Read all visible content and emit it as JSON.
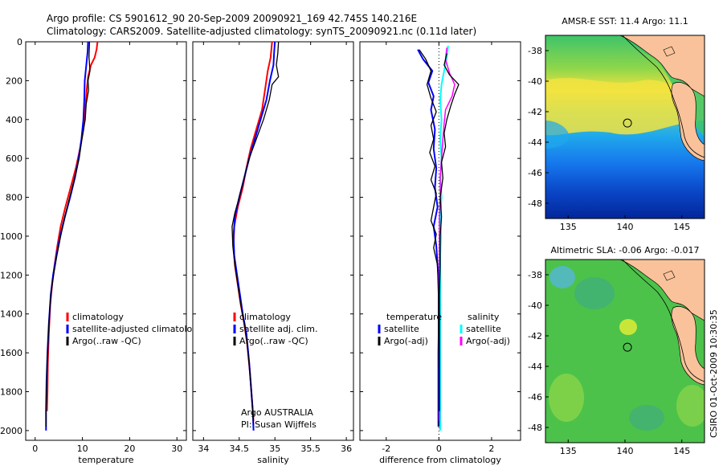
{
  "header": {
    "line1": "Argo profile: CS 5901612_90 20-Sep-2009 20090921_169 42.745S 140.216E",
    "line2": "Climatology: CARS2009. Satellite-adjusted climatology: synTS_20090921.nc (0.11d later)"
  },
  "side_label": "CSIRO 01-Oct-2009 10:30:35",
  "colors": {
    "climatology": "#ff0000",
    "satellite": "#0000ff",
    "argo": "#000000",
    "sat_diff_sal": "#00ffff",
    "argo_diff_sal": "#ff00ff",
    "land": "#f9c29a"
  },
  "chart_data": [
    {
      "id": "temperature",
      "type": "line",
      "xlabel": "temperature",
      "xlim": [
        -2,
        32
      ],
      "ylim": [
        2050,
        0
      ],
      "xticks": [
        0,
        10,
        20,
        30
      ],
      "yticks": [
        0,
        200,
        400,
        600,
        800,
        1000,
        1200,
        1400,
        1600,
        1800,
        2000
      ],
      "legend": [
        "climatology",
        "satellite-adjusted climatology",
        "Argo(..raw -QC)"
      ],
      "series": [
        {
          "name": "climatology",
          "color": "#ff0000",
          "width": 2,
          "points": [
            [
              13.2,
              0
            ],
            [
              13,
              40
            ],
            [
              12.6,
              80
            ],
            [
              11.8,
              120
            ],
            [
              11.2,
              180
            ],
            [
              10.9,
              250
            ],
            [
              10.6,
              350
            ],
            [
              10.2,
              450
            ],
            [
              9.5,
              550
            ],
            [
              8.6,
              650
            ],
            [
              7.5,
              750
            ],
            [
              6.4,
              850
            ],
            [
              5.4,
              950
            ],
            [
              4.7,
              1050
            ],
            [
              4.1,
              1150
            ],
            [
              3.6,
              1250
            ],
            [
              3.2,
              1350
            ],
            [
              2.9,
              1500
            ],
            [
              2.7,
              1650
            ],
            [
              2.6,
              1800
            ],
            [
              2.5,
              1900
            ]
          ]
        },
        {
          "name": "satellite-adjusted climatology",
          "color": "#0000ff",
          "width": 2,
          "points": [
            [
              11.2,
              0
            ],
            [
              11.1,
              50
            ],
            [
              10.9,
              100
            ],
            [
              10.7,
              150
            ],
            [
              10.5,
              200
            ],
            [
              10.4,
              300
            ],
            [
              10.2,
              400
            ],
            [
              9.8,
              500
            ],
            [
              9.2,
              600
            ],
            [
              8.4,
              700
            ],
            [
              7.4,
              800
            ],
            [
              6.3,
              900
            ],
            [
              5.3,
              1000
            ],
            [
              4.5,
              1100
            ],
            [
              3.8,
              1200
            ],
            [
              3.3,
              1300
            ],
            [
              2.9,
              1450
            ],
            [
              2.6,
              1600
            ],
            [
              2.4,
              1750
            ],
            [
              2.3,
              1900
            ],
            [
              2.3,
              2000
            ]
          ]
        },
        {
          "name": "Argo(..raw -QC)",
          "color": "#000000",
          "width": 1.3,
          "points": [
            [
              11.5,
              0
            ],
            [
              11.4,
              80
            ],
            [
              11.6,
              150
            ],
            [
              11.2,
              200
            ],
            [
              11.3,
              250
            ],
            [
              10.8,
              320
            ],
            [
              10.6,
              400
            ],
            [
              9.9,
              500
            ],
            [
              9.3,
              600
            ],
            [
              8.4,
              700
            ],
            [
              7.3,
              800
            ],
            [
              6.3,
              900
            ],
            [
              5.4,
              1000
            ],
            [
              4.6,
              1100
            ],
            [
              3.9,
              1200
            ],
            [
              3.3,
              1300
            ],
            [
              2.9,
              1450
            ],
            [
              2.6,
              1600
            ],
            [
              2.4,
              1750
            ],
            [
              2.3,
              1900
            ],
            [
              2.3,
              1980
            ]
          ]
        }
      ]
    },
    {
      "id": "salinity",
      "type": "line",
      "xlabel": "salinity",
      "xlim": [
        33.85,
        36.1
      ],
      "ylim": [
        2050,
        0
      ],
      "xticks": [
        34,
        34.5,
        35,
        35.5,
        36
      ],
      "yticks": [
        0,
        200,
        400,
        600,
        800,
        1000,
        1200,
        1400,
        1600,
        1800,
        2000
      ],
      "legend": [
        "climatology",
        "satellite adj. clim.",
        "Argo(..raw -QC)"
      ],
      "annotations": [
        "Argo AUSTRALIA",
        "PI: Susan Wijffels"
      ],
      "series": [
        {
          "name": "climatology",
          "color": "#ff0000",
          "width": 2,
          "points": [
            [
              34.96,
              0
            ],
            [
              34.94,
              80
            ],
            [
              34.9,
              150
            ],
            [
              34.86,
              250
            ],
            [
              34.82,
              350
            ],
            [
              34.74,
              450
            ],
            [
              34.66,
              550
            ],
            [
              34.6,
              650
            ],
            [
              34.55,
              750
            ],
            [
              34.48,
              850
            ],
            [
              34.43,
              950
            ],
            [
              34.42,
              1050
            ],
            [
              34.44,
              1150
            ],
            [
              34.48,
              1250
            ],
            [
              34.52,
              1350
            ],
            [
              34.57,
              1450
            ],
            [
              34.61,
              1550
            ],
            [
              34.65,
              1700
            ],
            [
              34.68,
              1850
            ],
            [
              34.7,
              1950
            ]
          ]
        },
        {
          "name": "satellite adj. clim.",
          "color": "#0000ff",
          "width": 2,
          "points": [
            [
              35.0,
              0
            ],
            [
              34.99,
              50
            ],
            [
              34.98,
              120
            ],
            [
              34.93,
              200
            ],
            [
              34.88,
              300
            ],
            [
              34.8,
              400
            ],
            [
              34.72,
              500
            ],
            [
              34.64,
              600
            ],
            [
              34.57,
              700
            ],
            [
              34.5,
              800
            ],
            [
              34.44,
              900
            ],
            [
              34.42,
              1000
            ],
            [
              34.43,
              1100
            ],
            [
              34.47,
              1200
            ],
            [
              34.51,
              1300
            ],
            [
              34.55,
              1400
            ],
            [
              34.6,
              1500
            ],
            [
              34.64,
              1650
            ],
            [
              34.67,
              1800
            ],
            [
              34.69,
              1900
            ],
            [
              34.7,
              2000
            ]
          ]
        },
        {
          "name": "Argo(..raw -QC)",
          "color": "#000000",
          "width": 1.3,
          "points": [
            [
              35.05,
              0
            ],
            [
              35.04,
              60
            ],
            [
              35.02,
              120
            ],
            [
              35.05,
              180
            ],
            [
              34.96,
              220
            ],
            [
              34.92,
              300
            ],
            [
              34.84,
              400
            ],
            [
              34.74,
              500
            ],
            [
              34.64,
              600
            ],
            [
              34.57,
              700
            ],
            [
              34.5,
              800
            ],
            [
              34.44,
              880
            ],
            [
              34.4,
              950
            ],
            [
              34.41,
              1050
            ],
            [
              34.44,
              1150
            ],
            [
              34.48,
              1250
            ],
            [
              34.52,
              1350
            ],
            [
              34.57,
              1450
            ],
            [
              34.61,
              1550
            ],
            [
              34.65,
              1700
            ],
            [
              34.68,
              1850
            ],
            [
              34.7,
              1970
            ]
          ]
        }
      ]
    },
    {
      "id": "difference",
      "type": "line",
      "xlabel": "difference from climatology",
      "xlim": [
        -3,
        3.1
      ],
      "ylim": [
        2050,
        0
      ],
      "xticks": [
        -2,
        0,
        2
      ],
      "yticks": [
        0,
        200,
        400,
        600,
        800,
        1000,
        1200,
        1400,
        1600,
        1800,
        2000
      ],
      "legend_headers": [
        "temperature",
        "salinity"
      ],
      "legend": [
        "satellite",
        "Argo(-adj)",
        "satellite",
        "Argo(-adj)"
      ],
      "series": [
        {
          "name": "satellite",
          "group": "temperature",
          "color": "#0000ff",
          "width": 2,
          "points": [
            [
              -0.8,
              40
            ],
            [
              -0.6,
              90
            ],
            [
              -0.25,
              150
            ],
            [
              -0.4,
              210
            ],
            [
              -0.2,
              280
            ],
            [
              -0.3,
              350
            ],
            [
              -0.15,
              450
            ],
            [
              -0.2,
              550
            ],
            [
              -0.1,
              650
            ],
            [
              -0.15,
              750
            ],
            [
              -0.05,
              850
            ],
            [
              -0.2,
              950
            ],
            [
              -0.1,
              1050
            ],
            [
              -0.05,
              1150
            ],
            [
              0,
              1250
            ],
            [
              0,
              1400
            ],
            [
              -0.02,
              1600
            ],
            [
              -0.02,
              1800
            ],
            [
              -0.02,
              1980
            ]
          ]
        },
        {
          "name": "Argo(-adj)",
          "group": "temperature",
          "color": "#000000",
          "width": 1.3,
          "points": [
            [
              -0.75,
              40
            ],
            [
              -0.5,
              90
            ],
            [
              -0.3,
              150
            ],
            [
              -0.45,
              220
            ],
            [
              -0.3,
              290
            ],
            [
              -0.1,
              360
            ],
            [
              -0.3,
              430
            ],
            [
              -0.2,
              500
            ],
            [
              -0.35,
              570
            ],
            [
              -0.15,
              640
            ],
            [
              -0.3,
              710
            ],
            [
              -0.1,
              780
            ],
            [
              -0.2,
              850
            ],
            [
              -0.3,
              920
            ],
            [
              -0.1,
              990
            ],
            [
              -0.2,
              1060
            ],
            [
              -0.05,
              1150
            ],
            [
              -0.02,
              1300
            ],
            [
              -0.02,
              1500
            ],
            [
              0,
              1700
            ],
            [
              0,
              1900
            ],
            [
              0,
              1980
            ]
          ]
        },
        {
          "name": "satellite",
          "group": "salinity",
          "color": "#00ffff",
          "width": 2,
          "points": [
            [
              0.35,
              20
            ],
            [
              0.3,
              80
            ],
            [
              0.2,
              150
            ],
            [
              0.1,
              220
            ],
            [
              0.05,
              300
            ],
            [
              0.1,
              400
            ],
            [
              0.05,
              500
            ],
            [
              0.1,
              600
            ],
            [
              0.05,
              700
            ],
            [
              0.1,
              800
            ],
            [
              0.05,
              900
            ],
            [
              0.08,
              1000
            ],
            [
              0.05,
              1100
            ],
            [
              0.05,
              1300
            ],
            [
              0.05,
              1500
            ],
            [
              0.05,
              1700
            ],
            [
              0.05,
              1900
            ],
            [
              0.05,
              2000
            ]
          ]
        },
        {
          "name": "Argo(-adj)",
          "group": "salinity",
          "color": "#ff00ff",
          "width": 1.5,
          "points": [
            [
              0.3,
              30
            ],
            [
              0.25,
              90
            ],
            [
              0.4,
              160
            ],
            [
              0.6,
              220
            ],
            [
              0.5,
              280
            ],
            [
              0.25,
              350
            ],
            [
              0.2,
              420
            ],
            [
              0.15,
              500
            ],
            [
              0.1,
              600
            ],
            [
              0.05,
              700
            ],
            [
              0.05,
              800
            ],
            [
              0.02,
              900
            ],
            [
              0.02,
              1000
            ],
            [
              0.02,
              1200
            ],
            [
              0.02,
              1400
            ],
            [
              0.02,
              1600
            ],
            [
              0.02,
              1800
            ],
            [
              0.02,
              1950
            ]
          ]
        },
        {
          "name": "Argo(-adj)",
          "group": "salinity",
          "color": "#000000",
          "width": 1.3,
          "points": [
            [
              0.3,
              60
            ],
            [
              0.2,
              120
            ],
            [
              0.4,
              170
            ],
            [
              0.75,
              220
            ],
            [
              0.6,
              270
            ],
            [
              0.45,
              330
            ],
            [
              0.3,
              400
            ],
            [
              0.2,
              470
            ],
            [
              0.25,
              540
            ],
            [
              0.1,
              620
            ],
            [
              0.15,
              700
            ],
            [
              0.05,
              800
            ],
            [
              0.1,
              900
            ],
            [
              0.05,
              1000
            ],
            [
              0.05,
              1150
            ],
            [
              0.02,
              1300
            ],
            [
              0.02,
              1500
            ],
            [
              0.02,
              1700
            ],
            [
              0.02,
              1900
            ]
          ]
        }
      ]
    },
    {
      "id": "sst_map",
      "type": "heatmap",
      "title": "AMSR-E SST: 11.4 Argo: 11.1",
      "xlim": [
        133,
        147
      ],
      "ylim": [
        -49,
        -37
      ],
      "xticks": [
        135,
        140,
        145
      ],
      "yticks": [
        -38,
        -40,
        -42,
        -44,
        -46,
        -48
      ],
      "marker": {
        "lon": 140.216,
        "lat": -42.745
      }
    },
    {
      "id": "sla_map",
      "type": "heatmap",
      "title": "Altimetric SLA: -0.06 Argo: -0.017",
      "xlim": [
        133,
        147
      ],
      "ylim": [
        -49,
        -37
      ],
      "xticks": [
        135,
        140,
        145
      ],
      "yticks": [
        -38,
        -40,
        -42,
        -44,
        -46,
        -48
      ],
      "marker": {
        "lon": 140.216,
        "lat": -42.745
      }
    }
  ]
}
